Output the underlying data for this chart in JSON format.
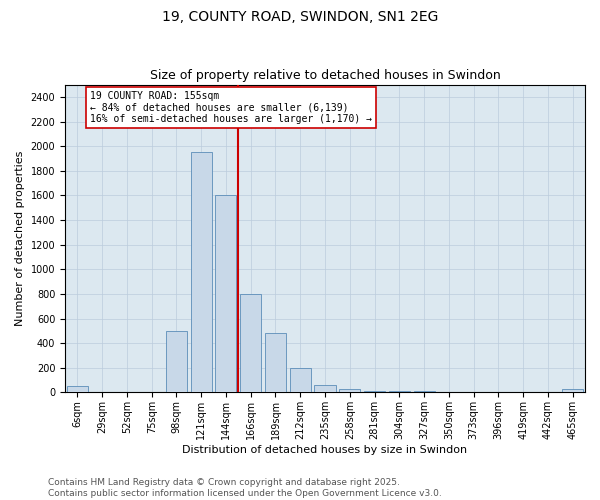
{
  "title": "19, COUNTY ROAD, SWINDON, SN1 2EG",
  "subtitle": "Size of property relative to detached houses in Swindon",
  "xlabel": "Distribution of detached houses by size in Swindon",
  "ylabel": "Number of detached properties",
  "categories": [
    "6sqm",
    "29sqm",
    "52sqm",
    "75sqm",
    "98sqm",
    "121sqm",
    "144sqm",
    "166sqm",
    "189sqm",
    "212sqm",
    "235sqm",
    "258sqm",
    "281sqm",
    "304sqm",
    "327sqm",
    "350sqm",
    "373sqm",
    "396sqm",
    "419sqm",
    "442sqm",
    "465sqm"
  ],
  "values": [
    50,
    0,
    0,
    0,
    500,
    1950,
    1600,
    800,
    480,
    200,
    60,
    25,
    15,
    10,
    8,
    5,
    0,
    0,
    0,
    0,
    30
  ],
  "bar_color": "#c8d8e8",
  "bar_edge_color": "#5b8db8",
  "vline_x": 6.5,
  "vline_color": "#cc0000",
  "annotation_text": "19 COUNTY ROAD: 155sqm\n← 84% of detached houses are smaller (6,139)\n16% of semi-detached houses are larger (1,170) →",
  "annotation_box_color": "#ffffff",
  "annotation_box_edge": "#cc0000",
  "ylim": [
    0,
    2500
  ],
  "yticks": [
    0,
    200,
    400,
    600,
    800,
    1000,
    1200,
    1400,
    1600,
    1800,
    2000,
    2200,
    2400
  ],
  "grid_color": "#bbccdd",
  "background_color": "#dce8f0",
  "footer1": "Contains HM Land Registry data © Crown copyright and database right 2025.",
  "footer2": "Contains public sector information licensed under the Open Government Licence v3.0.",
  "title_fontsize": 10,
  "subtitle_fontsize": 9,
  "label_fontsize": 8,
  "tick_fontsize": 7,
  "footer_fontsize": 6.5
}
